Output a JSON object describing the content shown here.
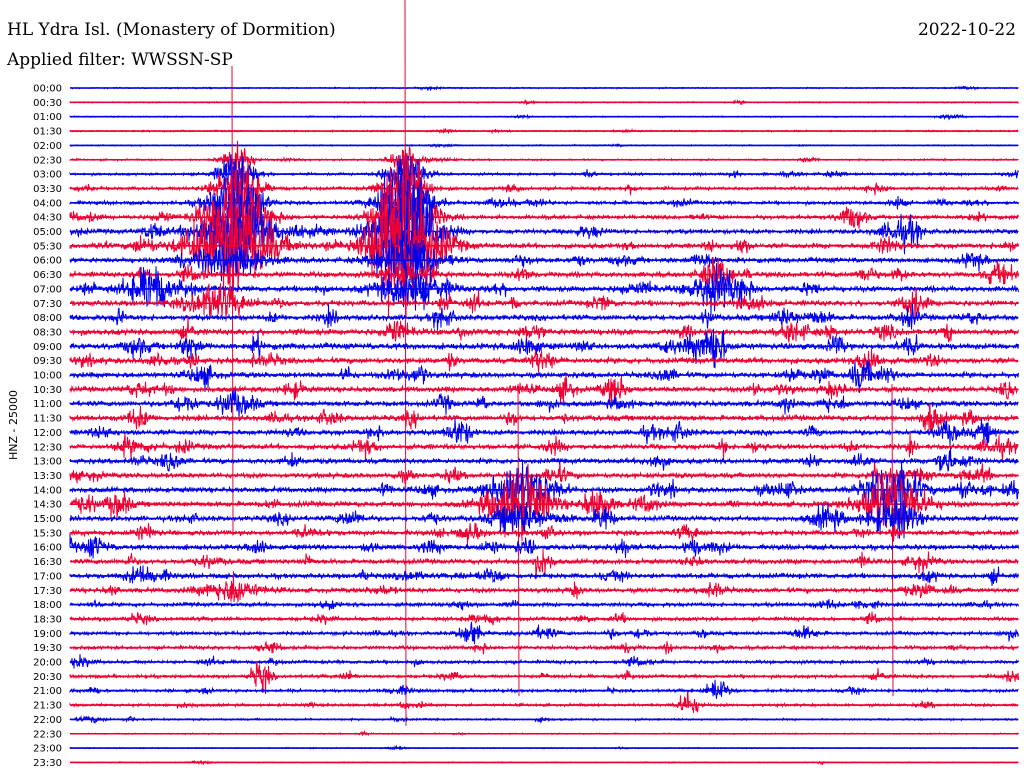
{
  "header": {
    "title": "HL Ydra Isl. (Monastery of Dormition)",
    "date": "2022-10-22",
    "filter": "Applied filter: WWSSN-SP"
  },
  "colors": {
    "blue": "#0000ee",
    "red": "#ee0033"
  },
  "chart_data": {
    "type": "line",
    "title": "HL Ydra Isl. (Monastery of Dormition)",
    "subtitle": "Applied filter: WWSSN-SP",
    "date": "2022-10-22",
    "ylabel": "HNZ - 25000",
    "line_labels": [
      "00:00",
      "00:30",
      "01:00",
      "01:30",
      "02:00",
      "02:30",
      "03:00",
      "03:30",
      "04:00",
      "04:30",
      "05:00",
      "05:30",
      "06:00",
      "06:30",
      "07:00",
      "07:30",
      "08:00",
      "08:30",
      "09:00",
      "09:30",
      "10:00",
      "10:30",
      "11:00",
      "11:30",
      "12:00",
      "12:30",
      "13:00",
      "13:30",
      "14:00",
      "14:30",
      "15:00",
      "15:30",
      "16:00",
      "16:30",
      "17:00",
      "17:30",
      "18:00",
      "18:30",
      "19:00",
      "19:30",
      "20:00",
      "20:30",
      "21:00",
      "21:30",
      "22:00",
      "22:30",
      "23:00",
      "23:30"
    ],
    "line_colors": [
      "blue",
      "red"
    ],
    "noise_level": [
      0.6,
      0.6,
      0.6,
      0.7,
      0.6,
      0.8,
      1.2,
      1.5,
      1.6,
      1.9,
      2.2,
      2.4,
      2.3,
      2.5,
      2.6,
      2.6,
      2.7,
      2.8,
      2.9,
      2.7,
      2.6,
      2.5,
      2.6,
      2.6,
      2.5,
      2.5,
      2.4,
      2.4,
      2.5,
      2.6,
      2.4,
      2.3,
      2.4,
      2.3,
      2.3,
      2.2,
      1.9,
      1.8,
      1.7,
      1.7,
      1.6,
      1.5,
      1.4,
      1.3,
      0.9,
      0.6,
      0.5,
      0.5
    ],
    "events": [
      {
        "line": 5,
        "x": 237,
        "amp": 14,
        "width": 14,
        "spike": 0
      },
      {
        "line": 6,
        "x": 237,
        "amp": 20,
        "width": 18,
        "spike": 0
      },
      {
        "line": 7,
        "x": 236,
        "amp": 24,
        "width": 22,
        "spike": 0
      },
      {
        "line": 8,
        "x": 236,
        "amp": 28,
        "width": 26,
        "spike": 0
      },
      {
        "line": 9,
        "x": 235,
        "amp": 34,
        "width": 30,
        "spike": 0
      },
      {
        "line": 10,
        "x": 234,
        "amp": 40,
        "width": 34,
        "spike": 0
      },
      {
        "line": 11,
        "x": 232,
        "amp": 44,
        "width": 40,
        "spike": 180
      },
      {
        "line": 12,
        "x": 232,
        "amp": 14,
        "width": 34,
        "spike": 0
      },
      {
        "line": 14,
        "x": 150,
        "amp": 16,
        "width": 26,
        "spike": 0
      },
      {
        "line": 15,
        "x": 215,
        "amp": 16,
        "width": 28,
        "spike": 0
      },
      {
        "line": 22,
        "x": 232,
        "amp": 12,
        "width": 14,
        "spike": 0
      },
      {
        "line": 5,
        "x": 405,
        "amp": 14,
        "width": 14,
        "spike": 0
      },
      {
        "line": 6,
        "x": 405,
        "amp": 22,
        "width": 18,
        "spike": 0
      },
      {
        "line": 7,
        "x": 405,
        "amp": 30,
        "width": 20,
        "spike": 0
      },
      {
        "line": 8,
        "x": 405,
        "amp": 40,
        "width": 24,
        "spike": 0
      },
      {
        "line": 9,
        "x": 405,
        "amp": 48,
        "width": 26,
        "spike": 0
      },
      {
        "line": 10,
        "x": 405,
        "amp": 58,
        "width": 30,
        "spike": 0
      },
      {
        "line": 11,
        "x": 405,
        "amp": 62,
        "width": 34,
        "spike": 300
      },
      {
        "line": 12,
        "x": 404,
        "amp": 26,
        "width": 28,
        "spike": 0
      },
      {
        "line": 13,
        "x": 405,
        "amp": 12,
        "width": 22,
        "spike": 0
      },
      {
        "line": 14,
        "x": 408,
        "amp": 20,
        "width": 30,
        "spike": 0
      },
      {
        "line": 14,
        "x": 715,
        "amp": 18,
        "width": 24,
        "spike": 0
      },
      {
        "line": 13,
        "x": 715,
        "amp": 10,
        "width": 14,
        "spike": 0
      },
      {
        "line": 18,
        "x": 715,
        "amp": 12,
        "width": 10,
        "spike": 0
      },
      {
        "line": 10,
        "x": 900,
        "amp": 12,
        "width": 18,
        "spike": 0
      },
      {
        "line": 28,
        "x": 518,
        "amp": 26,
        "width": 26,
        "spike": 0
      },
      {
        "line": 29,
        "x": 518,
        "amp": 30,
        "width": 30,
        "spike": 120
      },
      {
        "line": 30,
        "x": 518,
        "amp": 16,
        "width": 24,
        "spike": 0
      },
      {
        "line": 28,
        "x": 892,
        "amp": 26,
        "width": 26,
        "spike": 0
      },
      {
        "line": 29,
        "x": 892,
        "amp": 30,
        "width": 30,
        "spike": 120
      },
      {
        "line": 30,
        "x": 892,
        "amp": 16,
        "width": 24,
        "spike": 0
      },
      {
        "line": 38,
        "x": 470,
        "amp": 12,
        "width": 10,
        "spike": 0
      },
      {
        "line": 41,
        "x": 260,
        "amp": 14,
        "width": 10,
        "spike": 0
      },
      {
        "line": 42,
        "x": 718,
        "amp": 12,
        "width": 10,
        "spike": 0
      },
      {
        "line": 43,
        "x": 688,
        "amp": 12,
        "width": 10,
        "spike": 0
      },
      {
        "line": 21,
        "x": 565,
        "amp": 10,
        "width": 10,
        "spike": 0
      },
      {
        "line": 24,
        "x": 985,
        "amp": 9,
        "width": 10,
        "spike": 0
      },
      {
        "line": 20,
        "x": 862,
        "amp": 8,
        "width": 10,
        "spike": 0
      },
      {
        "line": 25,
        "x": 128,
        "amp": 8,
        "width": 12,
        "spike": 0
      },
      {
        "line": 34,
        "x": 140,
        "amp": 8,
        "width": 14,
        "spike": 0
      },
      {
        "line": 35,
        "x": 230,
        "amp": 9,
        "width": 30,
        "spike": 0
      },
      {
        "line": 32,
        "x": 95,
        "amp": 9,
        "width": 12,
        "spike": 0
      }
    ]
  }
}
